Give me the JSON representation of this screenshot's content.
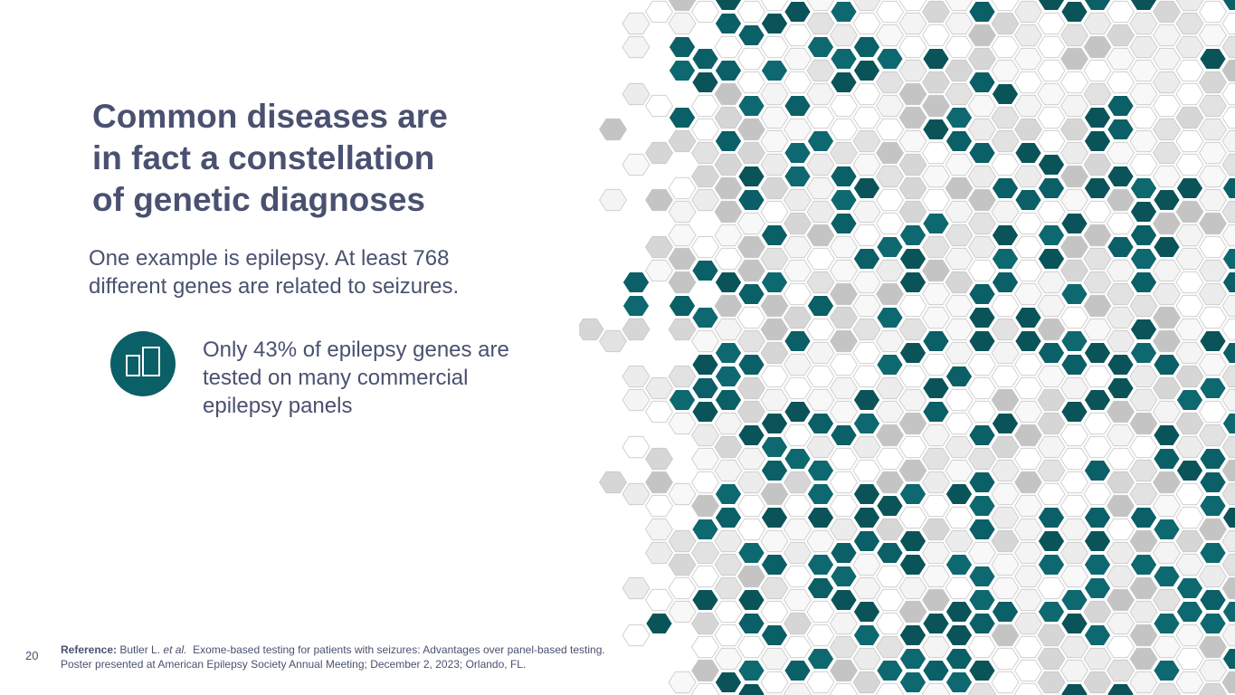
{
  "slide": {
    "title": [
      "Common diseases are",
      "in fact a constellation",
      "of genetic diagnoses"
    ],
    "subtitle": [
      "One example is epilepsy. At least 768",
      "different genes are related to seizures."
    ],
    "callout": [
      "Only 43% of epilepsy genes are",
      "tested on many commercial",
      "epilepsy panels"
    ],
    "page_number": "20",
    "reference": {
      "label": "Reference:",
      "author": "Butler L.",
      "etal": "et al.",
      "text": "Exome-based testing for patients with seizures: Advantages over panel-based testing. Poster presented at American Epilepsy Society Annual Meeting; December 2, 2023; Orlando, FL."
    }
  }
}
